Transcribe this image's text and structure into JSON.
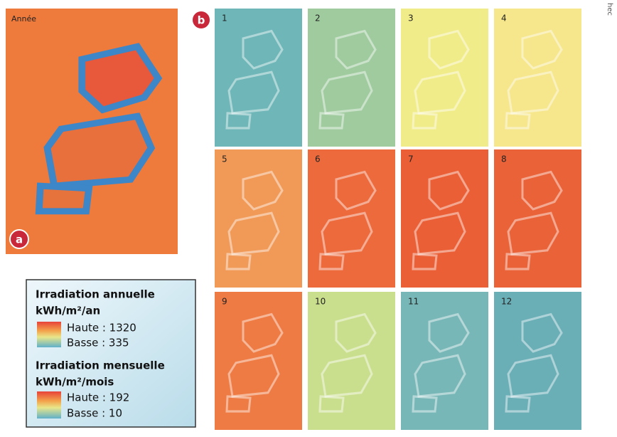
{
  "panel_a": {
    "badge": "a",
    "label": "Année",
    "color": "#ee7a3c"
  },
  "panel_b": {
    "badge": "b",
    "months": [
      {
        "label": "1",
        "color": "#6fb6b8"
      },
      {
        "label": "2",
        "color": "#9fcb9f"
      },
      {
        "label": "3",
        "color": "#f1ec8a"
      },
      {
        "label": "4",
        "color": "#f6e68c"
      },
      {
        "label": "5",
        "color": "#f19a58"
      },
      {
        "label": "6",
        "color": "#ec6a3c"
      },
      {
        "label": "7",
        "color": "#ea5f36"
      },
      {
        "label": "8",
        "color": "#ea6238"
      },
      {
        "label": "9",
        "color": "#ee7a44"
      },
      {
        "label": "10",
        "color": "#cadf8e"
      },
      {
        "label": "11",
        "color": "#78b7b7"
      },
      {
        "label": "12",
        "color": "#6aaeb6"
      }
    ]
  },
  "legend": {
    "annual_title": "Irradiation annuelle",
    "annual_unit": "kWh/m²/an",
    "annual_high": "Haute : 1320",
    "annual_low": "Basse : 335",
    "monthly_title": "Irradiation mensuelle",
    "monthly_unit": "kWh/m²/mois",
    "monthly_high": "Haute : 192",
    "monthly_low": "Basse : 10"
  },
  "edge_text": "hec"
}
